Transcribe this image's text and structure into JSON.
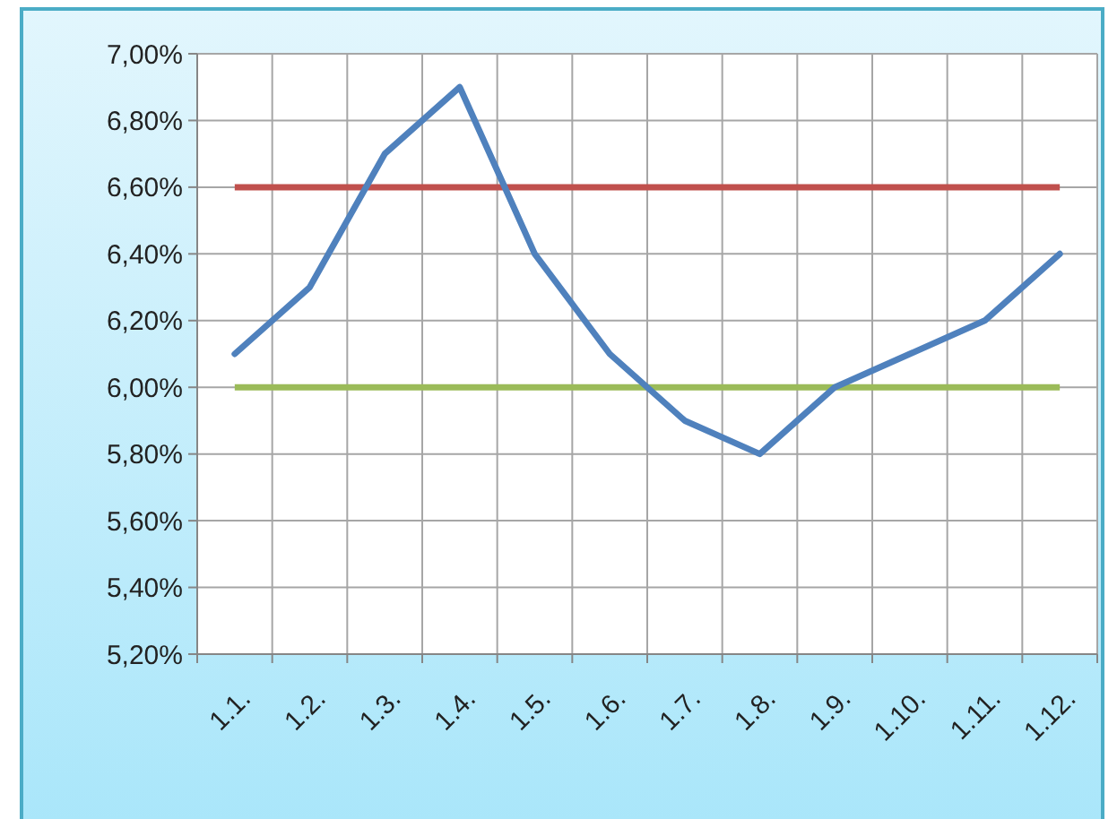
{
  "chart_data": {
    "type": "line",
    "categories": [
      "1.1.",
      "1.2.",
      "1.3.",
      "1.4.",
      "1.5.",
      "1.6.",
      "1.7.",
      "1.8.",
      "1.9.",
      "1.10.",
      "1.11.",
      "1.12."
    ],
    "series": [
      {
        "color": "#4f81bd",
        "values": [
          6.1,
          6.3,
          6.7,
          6.9,
          6.4,
          6.1,
          5.9,
          5.8,
          6.0,
          6.1,
          6.2,
          6.4
        ]
      }
    ],
    "ylim": [
      5.2,
      7.0
    ],
    "yticks": [
      {
        "value": 5.2,
        "label": "5,20%"
      },
      {
        "value": 5.4,
        "label": "5,40%"
      },
      {
        "value": 5.6,
        "label": "5,60%"
      },
      {
        "value": 5.8,
        "label": "5,80%"
      },
      {
        "value": 6.0,
        "label": "6,00%"
      },
      {
        "value": 6.2,
        "label": "6,20%"
      },
      {
        "value": 6.4,
        "label": "6,40%"
      },
      {
        "value": 6.6,
        "label": "6,60%"
      },
      {
        "value": 6.8,
        "label": "6,80%"
      },
      {
        "value": 7.0,
        "label": "7,00%"
      }
    ],
    "ref_lines": [
      {
        "axis": "y",
        "value": 6.6,
        "color": "#c0504d"
      },
      {
        "axis": "y",
        "value": 6.0,
        "color": "#9bbb59"
      }
    ],
    "grid": true,
    "marker": "none",
    "line_style": "solid"
  }
}
